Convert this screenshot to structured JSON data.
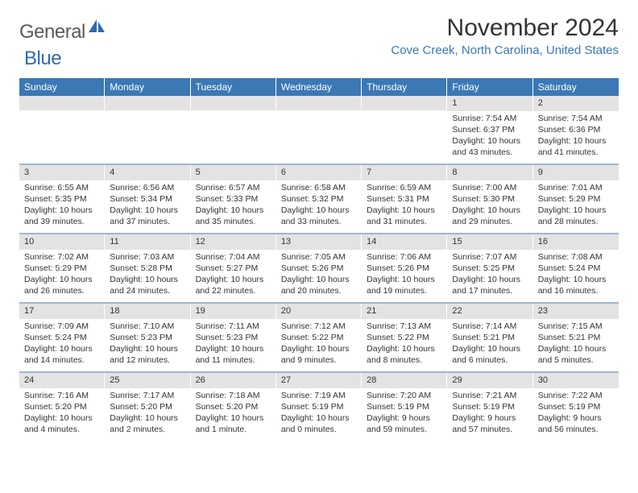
{
  "brand": {
    "part1": "General",
    "part2": "Blue"
  },
  "title": "November 2024",
  "location": "Cove Creek, North Carolina, United States",
  "colors": {
    "header_bg": "#3b78b5",
    "header_text": "#ffffff",
    "daynum_bg": "#e3e3e3",
    "separator": "#9ab6d4",
    "location_text": "#3b78b5",
    "body_text": "#333333",
    "logo_icon": "#2d6bb0"
  },
  "days_of_week": [
    "Sunday",
    "Monday",
    "Tuesday",
    "Wednesday",
    "Thursday",
    "Friday",
    "Saturday"
  ],
  "weeks": [
    [
      {
        "num": "",
        "sunrise": "",
        "sunset": "",
        "daylight": ""
      },
      {
        "num": "",
        "sunrise": "",
        "sunset": "",
        "daylight": ""
      },
      {
        "num": "",
        "sunrise": "",
        "sunset": "",
        "daylight": ""
      },
      {
        "num": "",
        "sunrise": "",
        "sunset": "",
        "daylight": ""
      },
      {
        "num": "",
        "sunrise": "",
        "sunset": "",
        "daylight": ""
      },
      {
        "num": "1",
        "sunrise": "Sunrise: 7:54 AM",
        "sunset": "Sunset: 6:37 PM",
        "daylight": "Daylight: 10 hours and 43 minutes."
      },
      {
        "num": "2",
        "sunrise": "Sunrise: 7:54 AM",
        "sunset": "Sunset: 6:36 PM",
        "daylight": "Daylight: 10 hours and 41 minutes."
      }
    ],
    [
      {
        "num": "3",
        "sunrise": "Sunrise: 6:55 AM",
        "sunset": "Sunset: 5:35 PM",
        "daylight": "Daylight: 10 hours and 39 minutes."
      },
      {
        "num": "4",
        "sunrise": "Sunrise: 6:56 AM",
        "sunset": "Sunset: 5:34 PM",
        "daylight": "Daylight: 10 hours and 37 minutes."
      },
      {
        "num": "5",
        "sunrise": "Sunrise: 6:57 AM",
        "sunset": "Sunset: 5:33 PM",
        "daylight": "Daylight: 10 hours and 35 minutes."
      },
      {
        "num": "6",
        "sunrise": "Sunrise: 6:58 AM",
        "sunset": "Sunset: 5:32 PM",
        "daylight": "Daylight: 10 hours and 33 minutes."
      },
      {
        "num": "7",
        "sunrise": "Sunrise: 6:59 AM",
        "sunset": "Sunset: 5:31 PM",
        "daylight": "Daylight: 10 hours and 31 minutes."
      },
      {
        "num": "8",
        "sunrise": "Sunrise: 7:00 AM",
        "sunset": "Sunset: 5:30 PM",
        "daylight": "Daylight: 10 hours and 29 minutes."
      },
      {
        "num": "9",
        "sunrise": "Sunrise: 7:01 AM",
        "sunset": "Sunset: 5:29 PM",
        "daylight": "Daylight: 10 hours and 28 minutes."
      }
    ],
    [
      {
        "num": "10",
        "sunrise": "Sunrise: 7:02 AM",
        "sunset": "Sunset: 5:29 PM",
        "daylight": "Daylight: 10 hours and 26 minutes."
      },
      {
        "num": "11",
        "sunrise": "Sunrise: 7:03 AM",
        "sunset": "Sunset: 5:28 PM",
        "daylight": "Daylight: 10 hours and 24 minutes."
      },
      {
        "num": "12",
        "sunrise": "Sunrise: 7:04 AM",
        "sunset": "Sunset: 5:27 PM",
        "daylight": "Daylight: 10 hours and 22 minutes."
      },
      {
        "num": "13",
        "sunrise": "Sunrise: 7:05 AM",
        "sunset": "Sunset: 5:26 PM",
        "daylight": "Daylight: 10 hours and 20 minutes."
      },
      {
        "num": "14",
        "sunrise": "Sunrise: 7:06 AM",
        "sunset": "Sunset: 5:26 PM",
        "daylight": "Daylight: 10 hours and 19 minutes."
      },
      {
        "num": "15",
        "sunrise": "Sunrise: 7:07 AM",
        "sunset": "Sunset: 5:25 PM",
        "daylight": "Daylight: 10 hours and 17 minutes."
      },
      {
        "num": "16",
        "sunrise": "Sunrise: 7:08 AM",
        "sunset": "Sunset: 5:24 PM",
        "daylight": "Daylight: 10 hours and 16 minutes."
      }
    ],
    [
      {
        "num": "17",
        "sunrise": "Sunrise: 7:09 AM",
        "sunset": "Sunset: 5:24 PM",
        "daylight": "Daylight: 10 hours and 14 minutes."
      },
      {
        "num": "18",
        "sunrise": "Sunrise: 7:10 AM",
        "sunset": "Sunset: 5:23 PM",
        "daylight": "Daylight: 10 hours and 12 minutes."
      },
      {
        "num": "19",
        "sunrise": "Sunrise: 7:11 AM",
        "sunset": "Sunset: 5:23 PM",
        "daylight": "Daylight: 10 hours and 11 minutes."
      },
      {
        "num": "20",
        "sunrise": "Sunrise: 7:12 AM",
        "sunset": "Sunset: 5:22 PM",
        "daylight": "Daylight: 10 hours and 9 minutes."
      },
      {
        "num": "21",
        "sunrise": "Sunrise: 7:13 AM",
        "sunset": "Sunset: 5:22 PM",
        "daylight": "Daylight: 10 hours and 8 minutes."
      },
      {
        "num": "22",
        "sunrise": "Sunrise: 7:14 AM",
        "sunset": "Sunset: 5:21 PM",
        "daylight": "Daylight: 10 hours and 6 minutes."
      },
      {
        "num": "23",
        "sunrise": "Sunrise: 7:15 AM",
        "sunset": "Sunset: 5:21 PM",
        "daylight": "Daylight: 10 hours and 5 minutes."
      }
    ],
    [
      {
        "num": "24",
        "sunrise": "Sunrise: 7:16 AM",
        "sunset": "Sunset: 5:20 PM",
        "daylight": "Daylight: 10 hours and 4 minutes."
      },
      {
        "num": "25",
        "sunrise": "Sunrise: 7:17 AM",
        "sunset": "Sunset: 5:20 PM",
        "daylight": "Daylight: 10 hours and 2 minutes."
      },
      {
        "num": "26",
        "sunrise": "Sunrise: 7:18 AM",
        "sunset": "Sunset: 5:20 PM",
        "daylight": "Daylight: 10 hours and 1 minute."
      },
      {
        "num": "27",
        "sunrise": "Sunrise: 7:19 AM",
        "sunset": "Sunset: 5:19 PM",
        "daylight": "Daylight: 10 hours and 0 minutes."
      },
      {
        "num": "28",
        "sunrise": "Sunrise: 7:20 AM",
        "sunset": "Sunset: 5:19 PM",
        "daylight": "Daylight: 9 hours and 59 minutes."
      },
      {
        "num": "29",
        "sunrise": "Sunrise: 7:21 AM",
        "sunset": "Sunset: 5:19 PM",
        "daylight": "Daylight: 9 hours and 57 minutes."
      },
      {
        "num": "30",
        "sunrise": "Sunrise: 7:22 AM",
        "sunset": "Sunset: 5:19 PM",
        "daylight": "Daylight: 9 hours and 56 minutes."
      }
    ]
  ]
}
